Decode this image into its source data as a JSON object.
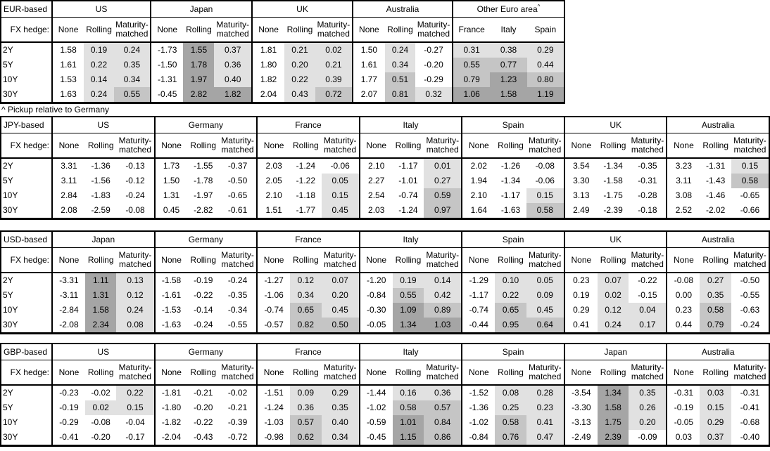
{
  "fx_hedge_label": "FX hedge:",
  "row_labels": [
    "2Y",
    "5Y",
    "10Y",
    "30Y"
  ],
  "hedge_columns": [
    "None",
    "Rolling",
    "Maturity-matched"
  ],
  "footnote": "^ Pickup relative to Germany",
  "colors": {
    "background": "#ffffff",
    "border": "#000000",
    "cell_light": "#e1e1e1",
    "cell_medium": "#c5c5c5",
    "cell_dark": "#a5a5a5"
  },
  "tables": [
    {
      "base": "EUR-based",
      "note": "^ Pickup relative to Germany",
      "groups": [
        {
          "name": "US",
          "columns": [
            "None",
            "Rolling",
            "Maturity-matched"
          ],
          "rows": [
            [
              "1.58",
              "0.19",
              "0.24"
            ],
            [
              "1.61",
              "0.22",
              "0.35"
            ],
            [
              "1.53",
              "0.14",
              "0.34"
            ],
            [
              "1.63",
              "0.24",
              "0.55"
            ]
          ]
        },
        {
          "name": "Japan",
          "columns": [
            "None",
            "Rolling",
            "Maturity-matched"
          ],
          "rows": [
            [
              "-1.73",
              "1.55",
              "0.37"
            ],
            [
              "-1.50",
              "1.78",
              "0.36"
            ],
            [
              "-1.31",
              "1.97",
              "0.40"
            ],
            [
              "-0.45",
              "2.82",
              "1.82"
            ]
          ]
        },
        {
          "name": "UK",
          "columns": [
            "None",
            "Rolling",
            "Maturity-matched"
          ],
          "rows": [
            [
              "1.81",
              "0.21",
              "0.02"
            ],
            [
              "1.80",
              "0.20",
              "0.21"
            ],
            [
              "1.82",
              "0.22",
              "0.39"
            ],
            [
              "2.04",
              "0.43",
              "0.72"
            ]
          ]
        },
        {
          "name": "Australia",
          "columns": [
            "None",
            "Rolling",
            "Maturity-matched"
          ],
          "rows": [
            [
              "1.50",
              "0.24",
              "-0.27"
            ],
            [
              "1.61",
              "0.34",
              "-0.20"
            ],
            [
              "1.77",
              "0.51",
              "-0.29"
            ],
            [
              "2.07",
              "0.81",
              "0.32"
            ]
          ]
        },
        {
          "name": "Other Euro area",
          "marker": "^",
          "columns": [
            "France",
            "Italy",
            "Spain"
          ],
          "rows": [
            [
              "0.31",
              "0.38",
              "0.29"
            ],
            [
              "0.55",
              "0.77",
              "0.44"
            ],
            [
              "0.79",
              "1.23",
              "0.80"
            ],
            [
              "1.06",
              "1.58",
              "1.19"
            ]
          ]
        }
      ]
    },
    {
      "base": "JPY-based",
      "groups": [
        {
          "name": "US",
          "columns": [
            "None",
            "Rolling",
            "Maturity-matched"
          ],
          "rows": [
            [
              "3.31",
              "-1.36",
              "-0.13"
            ],
            [
              "3.11",
              "-1.56",
              "-0.12"
            ],
            [
              "2.84",
              "-1.83",
              "-0.24"
            ],
            [
              "2.08",
              "-2.59",
              "-0.08"
            ]
          ]
        },
        {
          "name": "Germany",
          "columns": [
            "None",
            "Rolling",
            "Maturity-matched"
          ],
          "rows": [
            [
              "1.73",
              "-1.55",
              "-0.37"
            ],
            [
              "1.50",
              "-1.78",
              "-0.50"
            ],
            [
              "1.31",
              "-1.97",
              "-0.65"
            ],
            [
              "0.45",
              "-2.82",
              "-0.61"
            ]
          ]
        },
        {
          "name": "France",
          "columns": [
            "None",
            "Rolling",
            "Maturity-matched"
          ],
          "rows": [
            [
              "2.03",
              "-1.24",
              "-0.06"
            ],
            [
              "2.05",
              "-1.22",
              "0.05"
            ],
            [
              "2.10",
              "-1.18",
              "0.15"
            ],
            [
              "1.51",
              "-1.77",
              "0.45"
            ]
          ]
        },
        {
          "name": "Italy",
          "columns": [
            "None",
            "Rolling",
            "Maturity-matched"
          ],
          "rows": [
            [
              "2.10",
              "-1.17",
              "0.01"
            ],
            [
              "2.27",
              "-1.01",
              "0.27"
            ],
            [
              "2.54",
              "-0.74",
              "0.59"
            ],
            [
              "2.03",
              "-1.24",
              "0.97"
            ]
          ]
        },
        {
          "name": "Spain",
          "columns": [
            "None",
            "Rolling",
            "Maturity-matched"
          ],
          "rows": [
            [
              "2.02",
              "-1.26",
              "-0.08"
            ],
            [
              "1.94",
              "-1.34",
              "-0.06"
            ],
            [
              "2.10",
              "-1.17",
              "0.15"
            ],
            [
              "1.64",
              "-1.63",
              "0.58"
            ]
          ]
        },
        {
          "name": "UK",
          "columns": [
            "None",
            "Rolling",
            "Maturity-matched"
          ],
          "rows": [
            [
              "3.54",
              "-1.34",
              "-0.35"
            ],
            [
              "3.30",
              "-1.58",
              "-0.31"
            ],
            [
              "3.13",
              "-1.75",
              "-0.28"
            ],
            [
              "2.49",
              "-2.39",
              "-0.18"
            ]
          ]
        },
        {
          "name": "Australia",
          "columns": [
            "None",
            "Rolling",
            "Maturity-matched"
          ],
          "rows": [
            [
              "3.23",
              "-1.31",
              "0.15"
            ],
            [
              "3.11",
              "-1.43",
              "0.58"
            ],
            [
              "3.08",
              "-1.46",
              "-0.65"
            ],
            [
              "2.52",
              "-2.02",
              "-0.66"
            ]
          ]
        }
      ]
    },
    {
      "base": "USD-based",
      "groups": [
        {
          "name": "Japan",
          "columns": [
            "None",
            "Rolling",
            "Maturity-matched"
          ],
          "rows": [
            [
              "-3.31",
              "1.11",
              "0.13"
            ],
            [
              "-3.11",
              "1.31",
              "0.12"
            ],
            [
              "-2.84",
              "1.58",
              "0.24"
            ],
            [
              "-2.08",
              "2.34",
              "0.08"
            ]
          ]
        },
        {
          "name": "Germany",
          "columns": [
            "None",
            "Rolling",
            "Maturity-matched"
          ],
          "rows": [
            [
              "-1.58",
              "-0.19",
              "-0.24"
            ],
            [
              "-1.61",
              "-0.22",
              "-0.35"
            ],
            [
              "-1.53",
              "-0.14",
              "-0.34"
            ],
            [
              "-1.63",
              "-0.24",
              "-0.55"
            ]
          ]
        },
        {
          "name": "France",
          "columns": [
            "None",
            "Rolling",
            "Maturity-matched"
          ],
          "rows": [
            [
              "-1.27",
              "0.12",
              "0.07"
            ],
            [
              "-1.06",
              "0.34",
              "0.20"
            ],
            [
              "-0.74",
              "0.65",
              "0.45"
            ],
            [
              "-0.57",
              "0.82",
              "0.50"
            ]
          ]
        },
        {
          "name": "Italy",
          "columns": [
            "None",
            "Rolling",
            "Maturity-matched"
          ],
          "rows": [
            [
              "-1.20",
              "0.19",
              "0.14"
            ],
            [
              "-0.84",
              "0.55",
              "0.42"
            ],
            [
              "-0.30",
              "1.09",
              "0.89"
            ],
            [
              "-0.05",
              "1.34",
              "1.03"
            ]
          ]
        },
        {
          "name": "Spain",
          "columns": [
            "None",
            "Rolling",
            "Maturity-matched"
          ],
          "rows": [
            [
              "-1.29",
              "0.10",
              "0.05"
            ],
            [
              "-1.17",
              "0.22",
              "0.09"
            ],
            [
              "-0.74",
              "0.65",
              "0.45"
            ],
            [
              "-0.44",
              "0.95",
              "0.64"
            ]
          ]
        },
        {
          "name": "UK",
          "columns": [
            "None",
            "Rolling",
            "Maturity-matched"
          ],
          "rows": [
            [
              "0.23",
              "0.07",
              "-0.22"
            ],
            [
              "0.19",
              "0.02",
              "-0.15"
            ],
            [
              "0.29",
              "0.12",
              "0.04"
            ],
            [
              "0.41",
              "0.24",
              "0.17"
            ]
          ]
        },
        {
          "name": "Australia",
          "columns": [
            "None",
            "Rolling",
            "Maturity-matched"
          ],
          "rows": [
            [
              "-0.08",
              "0.27",
              "-0.50"
            ],
            [
              "0.00",
              "0.35",
              "-0.55"
            ],
            [
              "0.23",
              "0.58",
              "-0.63"
            ],
            [
              "0.44",
              "0.79",
              "-0.24"
            ]
          ]
        }
      ]
    },
    {
      "base": "GBP-based",
      "groups": [
        {
          "name": "US",
          "columns": [
            "None",
            "Rolling",
            "Maturity-matched"
          ],
          "rows": [
            [
              "-0.23",
              "-0.02",
              "0.22"
            ],
            [
              "-0.19",
              "0.02",
              "0.15"
            ],
            [
              "-0.29",
              "-0.08",
              "-0.04"
            ],
            [
              "-0.41",
              "-0.20",
              "-0.17"
            ]
          ]
        },
        {
          "name": "Germany",
          "columns": [
            "None",
            "Rolling",
            "Maturity-matched"
          ],
          "rows": [
            [
              "-1.81",
              "-0.21",
              "-0.02"
            ],
            [
              "-1.80",
              "-0.20",
              "-0.21"
            ],
            [
              "-1.82",
              "-0.22",
              "-0.39"
            ],
            [
              "-2.04",
              "-0.43",
              "-0.72"
            ]
          ]
        },
        {
          "name": "France",
          "columns": [
            "None",
            "Rolling",
            "Maturity-matched"
          ],
          "rows": [
            [
              "-1.51",
              "0.09",
              "0.29"
            ],
            [
              "-1.24",
              "0.36",
              "0.35"
            ],
            [
              "-1.03",
              "0.57",
              "0.40"
            ],
            [
              "-0.98",
              "0.62",
              "0.34"
            ]
          ]
        },
        {
          "name": "Italy",
          "columns": [
            "None",
            "Rolling",
            "Maturity-matched"
          ],
          "rows": [
            [
              "-1.44",
              "0.16",
              "0.36"
            ],
            [
              "-1.02",
              "0.58",
              "0.57"
            ],
            [
              "-0.59",
              "1.01",
              "0.84"
            ],
            [
              "-0.45",
              "1.15",
              "0.86"
            ]
          ]
        },
        {
          "name": "Spain",
          "columns": [
            "None",
            "Rolling",
            "Maturity-matched"
          ],
          "rows": [
            [
              "-1.52",
              "0.08",
              "0.28"
            ],
            [
              "-1.36",
              "0.25",
              "0.23"
            ],
            [
              "-1.02",
              "0.58",
              "0.41"
            ],
            [
              "-0.84",
              "0.76",
              "0.47"
            ]
          ]
        },
        {
          "name": "Japan",
          "columns": [
            "None",
            "Rolling",
            "Maturity-matched"
          ],
          "rows": [
            [
              "-3.54",
              "1.34",
              "0.35"
            ],
            [
              "-3.30",
              "1.58",
              "0.26"
            ],
            [
              "-3.13",
              "1.75",
              "0.20"
            ],
            [
              "-2.49",
              "2.39",
              "-0.09"
            ]
          ]
        },
        {
          "name": "Australia",
          "columns": [
            "None",
            "Rolling",
            "Maturity-matched"
          ],
          "rows": [
            [
              "-0.31",
              "0.03",
              "-0.31"
            ],
            [
              "-0.19",
              "0.15",
              "-0.41"
            ],
            [
              "-0.05",
              "0.29",
              "-0.68"
            ],
            [
              "0.03",
              "0.37",
              "-0.40"
            ]
          ]
        }
      ]
    }
  ]
}
